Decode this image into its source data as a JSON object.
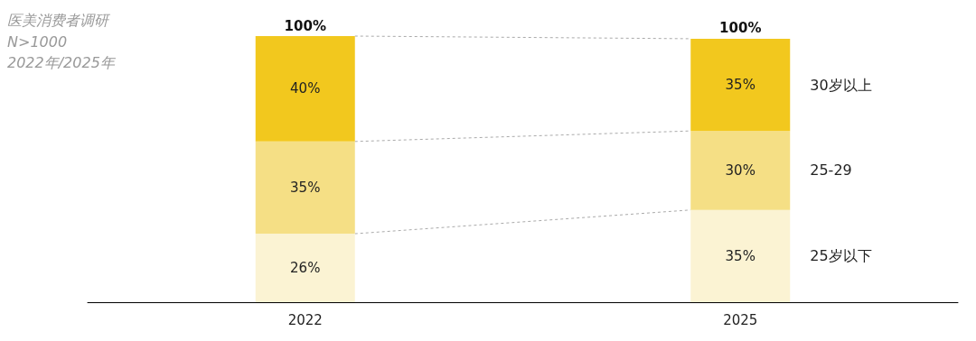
{
  "chart_data": {
    "type": "bar",
    "stacked": true,
    "title": "医美消费者调研",
    "annotations": [
      "N>1000",
      "2022年/2025年"
    ],
    "categories": [
      "2022",
      "2025"
    ],
    "series": [
      {
        "name": "25岁以下",
        "color": "#fbf3d3",
        "values": [
          26,
          35
        ],
        "value_labels": [
          "26%",
          "35%"
        ]
      },
      {
        "name": "25-29",
        "color": "#f5df85",
        "values": [
          35,
          30
        ],
        "value_labels": [
          "35%",
          "30%"
        ]
      },
      {
        "name": "30岁以上",
        "color": "#f2c81e",
        "values": [
          40,
          35
        ],
        "value_labels": [
          "40%",
          "35%"
        ]
      }
    ],
    "totals": [
      "100%",
      "100%"
    ]
  }
}
